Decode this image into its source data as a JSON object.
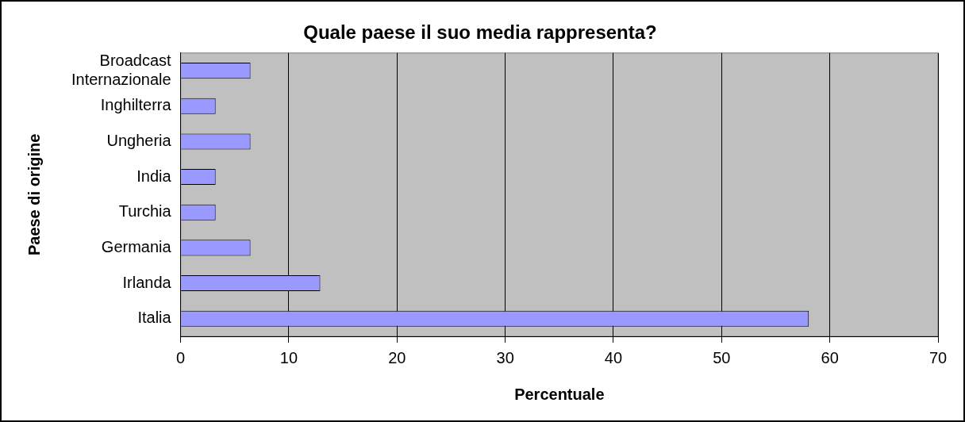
{
  "chart_data": {
    "type": "bar",
    "orientation": "horizontal",
    "title": "Quale paese il suo media rappresenta?",
    "xlabel": "Percentuale",
    "ylabel": "Paese di origine",
    "categories": [
      "Broadcast Internazionale",
      "Inghilterra",
      "Ungheria",
      "India",
      "Turchia",
      "Germania",
      "Irlanda",
      "Italia"
    ],
    "values": [
      6.45,
      3.23,
      6.45,
      3.23,
      3.23,
      6.45,
      12.9,
      58.06
    ],
    "color": "#9999ff",
    "xlim": [
      0,
      70
    ],
    "xticks": [
      0,
      10,
      20,
      30,
      40,
      50,
      60,
      70
    ],
    "grid": "x",
    "legend": false
  }
}
